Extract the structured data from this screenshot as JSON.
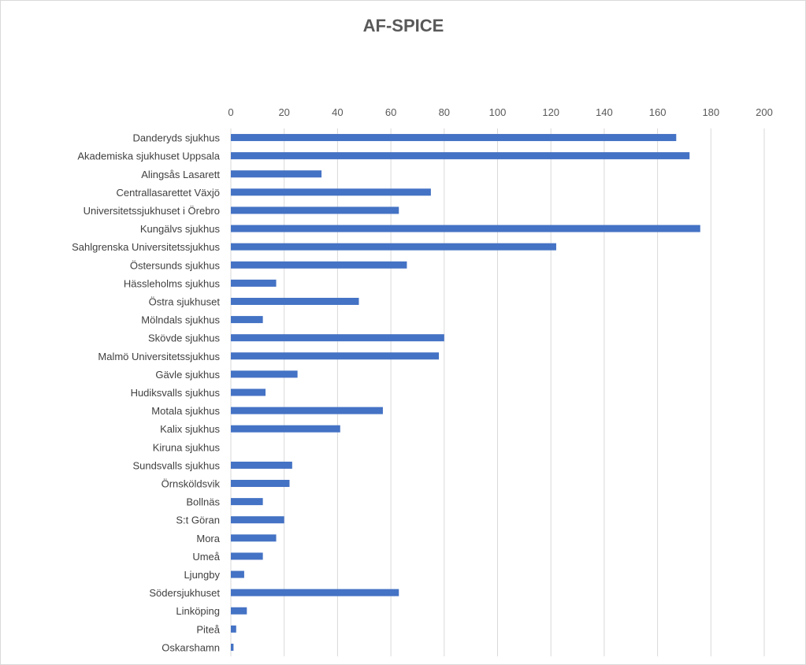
{
  "chart_data": {
    "type": "bar",
    "orientation": "horizontal",
    "title": "AF-SPICE",
    "xlabel": "",
    "ylabel": "",
    "xlim": [
      0,
      200
    ],
    "x_ticks": [
      "0",
      "20",
      "40",
      "60",
      "80",
      "100",
      "120",
      "140",
      "160",
      "180",
      "200"
    ],
    "x_axis_position": "top",
    "grid": true,
    "legend": "none",
    "bar_color": "#4472C4",
    "categories": [
      "Danderyds sjukhus",
      "Akademiska sjukhuset Uppsala",
      "Alingsås Lasarett",
      "Centrallasarettet Växjö",
      "Universitetssjukhuset i Örebro",
      "Kungälvs sjukhus",
      "Sahlgrenska Universitetssjukhus",
      "Östersunds sjukhus",
      "Hässleholms sjukhus",
      "Östra sjukhuset",
      "Mölndals sjukhus",
      "Skövde sjukhus",
      "Malmö Universitetssjukhus",
      "Gävle sjukhus",
      "Hudiksvalls sjukhus",
      "Motala sjukhus",
      "Kalix sjukhus",
      "Kiruna sjukhus",
      "Sundsvalls sjukhus",
      "Örnsköldsvik",
      "Bollnäs",
      "S:t Göran",
      "Mora",
      "Umeå",
      "Ljungby",
      "Södersjukhuset",
      "Linköping",
      "Piteå",
      "Oskarshamn"
    ],
    "values": [
      167,
      172,
      34,
      75,
      63,
      176,
      122,
      66,
      17,
      48,
      12,
      80,
      78,
      25,
      13,
      57,
      41,
      0,
      23,
      22,
      12,
      20,
      17,
      12,
      5,
      63,
      6,
      2,
      1
    ]
  }
}
